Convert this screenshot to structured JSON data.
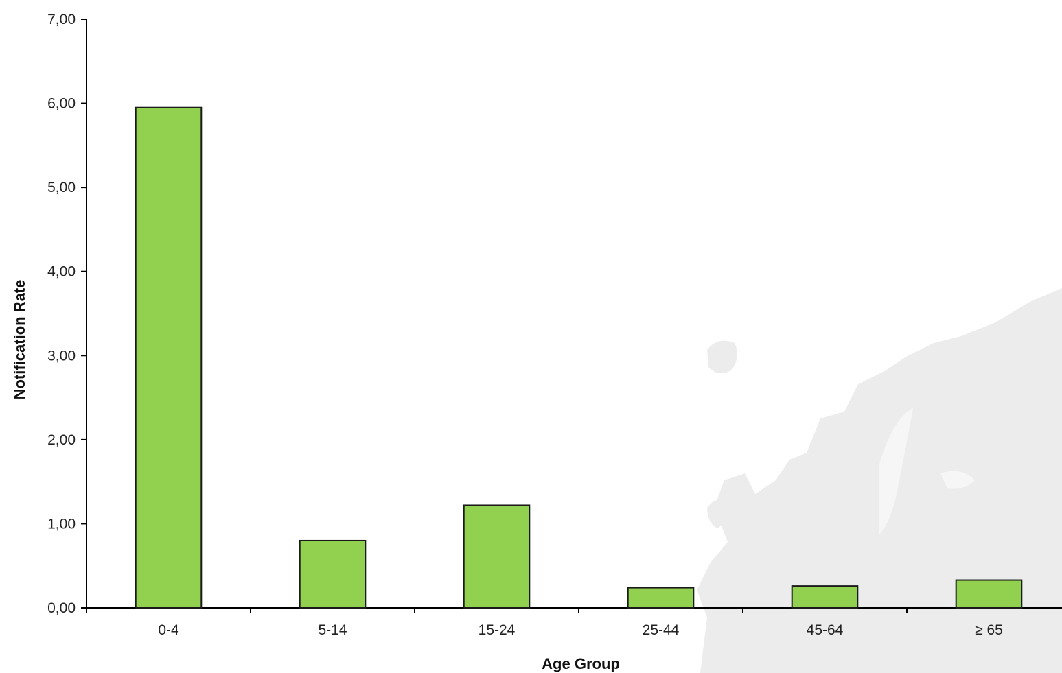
{
  "chart_data": {
    "type": "bar",
    "categories": [
      "0-4",
      "5-14",
      "15-24",
      "25-44",
      "45-64",
      "≥ 65"
    ],
    "values": [
      5.95,
      0.8,
      1.22,
      0.24,
      0.26,
      0.33
    ],
    "title": "",
    "xlabel": "Age Group",
    "ylabel": "Notification Rate",
    "ylim": [
      0,
      7
    ],
    "yticks": [
      "0,00",
      "1,00",
      "2,00",
      "3,00",
      "4,00",
      "5,00",
      "6,00",
      "7,00"
    ],
    "bar_color": "#92d050",
    "bar_edge_color": "#1a1a1a",
    "grid": false,
    "legend": "none"
  }
}
